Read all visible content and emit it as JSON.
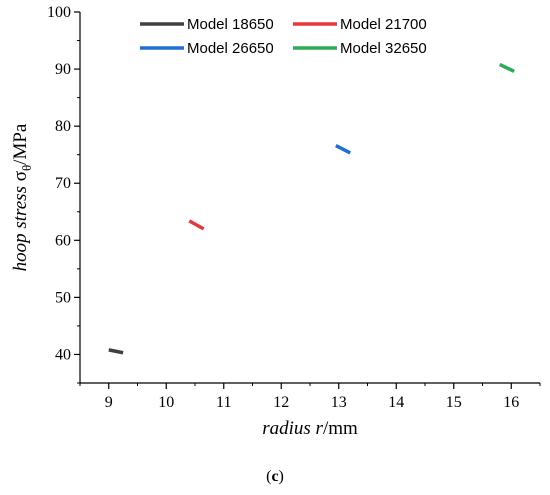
{
  "chart_data": {
    "type": "line",
    "title": "",
    "xlabel_prefix": "radius ",
    "xlabel_var": "r",
    "xlabel_unit": "/mm",
    "ylabel_prefix": "hoop stress ",
    "ylabel_sym": "σ",
    "ylabel_sub": "θ",
    "ylabel_unit": "/MPa",
    "xlim": [
      8.5,
      16.5
    ],
    "ylim": [
      35,
      100
    ],
    "xticks": [
      9,
      10,
      11,
      12,
      13,
      14,
      15,
      16
    ],
    "yticks": [
      40,
      50,
      60,
      70,
      80,
      90,
      100
    ],
    "grid": false,
    "legend_position": "top",
    "series": [
      {
        "name": "Model 18650",
        "color": "#404040",
        "x": [
          9.0,
          9.25
        ],
        "y": [
          40.8,
          40.3
        ]
      },
      {
        "name": "Model 21700",
        "color": "#e8383d",
        "x": [
          10.4,
          10.65
        ],
        "y": [
          63.4,
          62.0
        ]
      },
      {
        "name": "Model 26650",
        "color": "#1f6fd6",
        "x": [
          12.95,
          13.2
        ],
        "y": [
          76.6,
          75.3
        ]
      },
      {
        "name": "Model 32650",
        "color": "#2eab5a",
        "x": [
          15.8,
          16.05
        ],
        "y": [
          90.8,
          89.6
        ]
      }
    ]
  },
  "caption": {
    "open": "(",
    "letter": "c",
    "close": ")"
  }
}
